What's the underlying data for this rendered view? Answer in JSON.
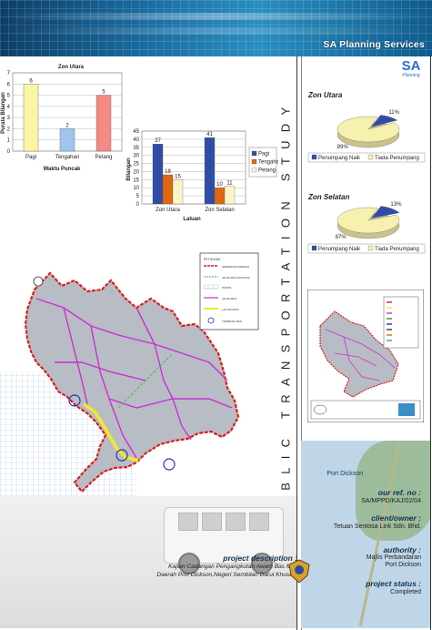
{
  "banner": {
    "brand": "SA Planning Services"
  },
  "logo": {
    "letters": "SA",
    "caption": "Planning"
  },
  "vertical_title": "PUBLIC TRANSPORTATION STUDY",
  "charts": {
    "waktu": {
      "title": "Zon Utara",
      "xlabel": "Waktu Puncak",
      "ylabel": "Purata Bilangan",
      "ylim": [
        0,
        7
      ],
      "categories": [
        "Pagi",
        "Tengahari",
        "Petang"
      ],
      "values": [
        6,
        2,
        5
      ],
      "colors": [
        "#fbf5a6",
        "#9ec4ef",
        "#f58a82"
      ]
    },
    "laluan": {
      "xlabel": "Laluan",
      "ylabel": "Bilangan",
      "ylim": [
        0,
        45
      ],
      "categories": [
        "Zon Utara",
        "Zon Selatan"
      ],
      "series": [
        {
          "name": "Pagi",
          "values": [
            37,
            41
          ],
          "color": "#2f4da8"
        },
        {
          "name": "Tengahari",
          "values": [
            18,
            10
          ],
          "color": "#e0670f"
        },
        {
          "name": "Petang",
          "values": [
            15,
            11
          ],
          "color": "#fbf5c6"
        }
      ]
    },
    "pie_utara": {
      "title": "Zon Utara",
      "slices": [
        {
          "name": "Penumpang Naik",
          "value": 11,
          "label": "11%",
          "color": "#2f4da8"
        },
        {
          "name": "Tiada Penumpang",
          "value": 89,
          "label": "89%",
          "color": "#f7f1b0"
        }
      ]
    },
    "pie_selatan": {
      "title": "Zon Selatan",
      "slices": [
        {
          "name": "Penumpang Naik",
          "value": 13,
          "label": "13%",
          "color": "#2f4da8"
        },
        {
          "name": "Tiada Penumpang",
          "value": 87,
          "label": "87%",
          "color": "#f7f1b0"
        }
      ]
    }
  },
  "chart_data": [
    {
      "type": "bar",
      "title": "Zon Utara",
      "categories": [
        "Pagi",
        "Tengahari",
        "Petang"
      ],
      "values": [
        6,
        2,
        5
      ],
      "xlabel": "Waktu Puncak",
      "ylabel": "Purata Bilangan",
      "ylim": [
        0,
        7
      ]
    },
    {
      "type": "bar",
      "categories": [
        "Zon Utara",
        "Zon Selatan"
      ],
      "series": [
        {
          "name": "Pagi",
          "values": [
            37,
            41
          ]
        },
        {
          "name": "Tengahari",
          "values": [
            18,
            10
          ]
        },
        {
          "name": "Petang",
          "values": [
            15,
            11
          ]
        }
      ],
      "xlabel": "Laluan",
      "ylabel": "Bilangan",
      "ylim": [
        0,
        45
      ]
    },
    {
      "type": "pie",
      "title": "Zon Utara",
      "categories": [
        "Penumpang Naik",
        "Tiada Penumpang"
      ],
      "values": [
        11,
        89
      ]
    },
    {
      "type": "pie",
      "title": "Zon Selatan",
      "categories": [
        "Penumpang Naik",
        "Tiada Penumpang"
      ],
      "values": [
        13,
        87
      ]
    }
  ],
  "info": {
    "ref_label": "our ref. no :",
    "ref_value": "SA/MPPD/KAJ/02/04",
    "client_label": "client/owner :",
    "client_value": "Tetuan Sentosa Link Sdn. Bhd.",
    "authority_label": "authority :",
    "authority_value_1": "Majlis Perbandaran",
    "authority_value_2": "Port Dickson",
    "status_label": "project status :",
    "status_value": "Completed",
    "map_place": "Port Dickson"
  },
  "description": {
    "label": "project description :",
    "line1": "Kajian Cadangan Pengangkutan Awam Bas Mini",
    "line2": "Daerah Port Dickson,Negeri Sembilan Darul Khusus."
  },
  "map_legend": {
    "title": "PETUNJUK :",
    "items": [
      "SEMPADAN DAERAH",
      "JALAN BAS EXISTING",
      "PANTAI",
      "JALAN BAS",
      "LALUAN BAS",
      "TERMINAL BAS"
    ]
  },
  "colors": {
    "accent": "#12324f",
    "map_fill": "#b8bcc4",
    "boundary": "#d81e1e",
    "route": "#cc2fd0",
    "coast": "#f1ea2a"
  }
}
